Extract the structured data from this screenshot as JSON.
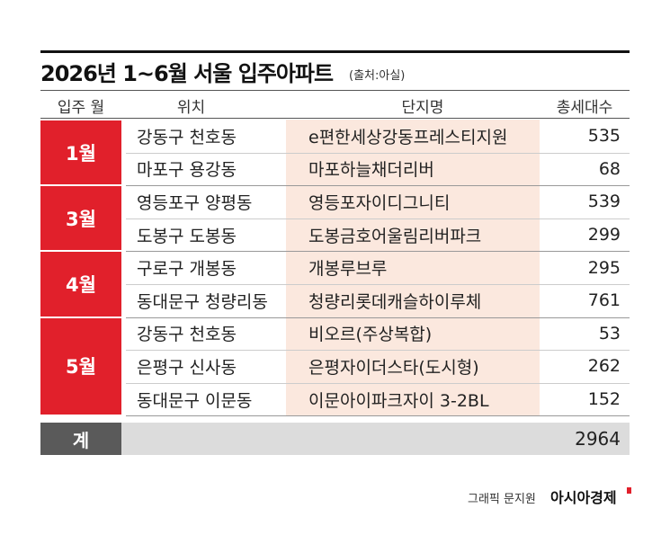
{
  "title": "2026년 1~6월 서울 입주아파트",
  "source": "(출처:아실)",
  "table": {
    "header": [
      "입주 월",
      "위치",
      "단지명",
      "총세대수"
    ],
    "groups": [
      {
        "month": "1월",
        "rows": [
          [
            "강동구 천호동",
            "e편한세상강동프레스티지원",
            535
          ],
          [
            "마포구 용강동",
            "마포하늘채더리버",
            68
          ]
        ]
      },
      {
        "month": "3월",
        "rows": [
          [
            "영등포구 양평동",
            "영등포자이디그니티",
            539
          ],
          [
            "도봉구 도봉동",
            "도봉금호어울림리버파크",
            299
          ]
        ]
      },
      {
        "month": "4월",
        "rows": [
          [
            "구로구 개봉동",
            "개봉루브루",
            295
          ],
          [
            "동대문구 청량리동",
            "청량리롯데캐슬하이루체",
            761
          ]
        ]
      },
      {
        "month": "5월",
        "rows": [
          [
            "강동구 천호동",
            "비오르(주상복합)",
            53
          ],
          [
            "은평구 신사동",
            "은평자이더스타(도시형)",
            262
          ],
          [
            "동대문구 이문동",
            "이문아이파크자이 3-2BL",
            152
          ]
        ]
      }
    ],
    "total": {
      "label": "계",
      "value": 2964
    }
  },
  "credit": {
    "designer": "그래픽 문지원",
    "brand": "아시아경제"
  }
}
